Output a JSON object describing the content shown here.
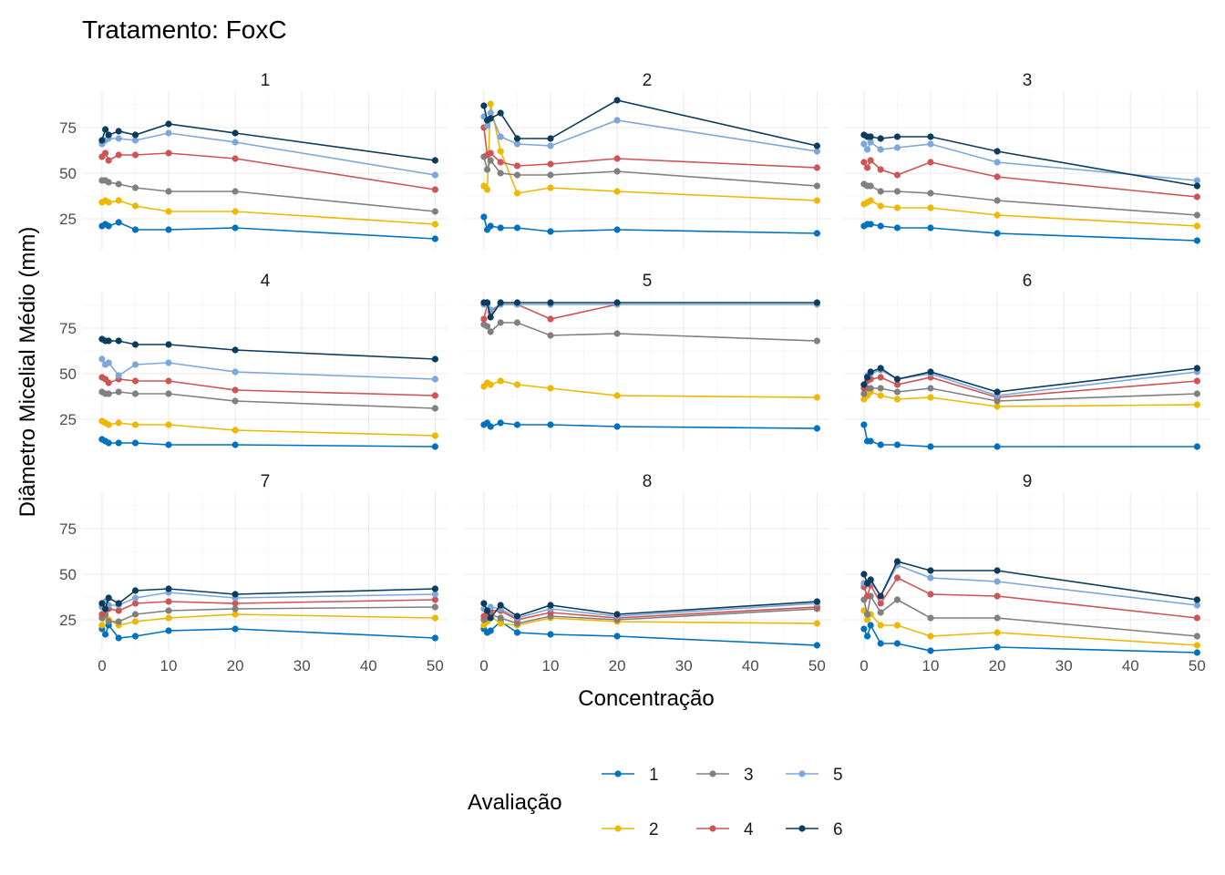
{
  "title": "Tratamento: FoxC",
  "xlabel": "Concentração",
  "ylabel": "Diâmetro Micelial Médio (mm)",
  "legend": {
    "title": "Avaliação",
    "entries": [
      {
        "name": "1",
        "color": "#0072BD"
      },
      {
        "name": "2",
        "color": "#EDB800"
      },
      {
        "name": "3",
        "color": "#808080"
      },
      {
        "name": "4",
        "color": "#CD5555"
      },
      {
        "name": "5",
        "color": "#7DA7D9"
      },
      {
        "name": "6",
        "color": "#0B3C5D"
      }
    ]
  },
  "chart_data": {
    "type": "line",
    "facet_wrap": "3x3",
    "x": [
      0,
      0.5,
      1,
      2.5,
      5,
      10,
      20,
      50
    ],
    "x_ticks": [
      0,
      10,
      20,
      30,
      40,
      50
    ],
    "y_ticks": [
      25,
      50,
      75
    ],
    "xlim": [
      -3,
      52
    ],
    "ylim": [
      8,
      95
    ],
    "legend_position": "bottom",
    "panels": [
      {
        "label": "1",
        "series": [
          {
            "name": "1",
            "values": [
              21,
              22,
              21,
              23,
              19,
              19,
              20,
              14
            ]
          },
          {
            "name": "2",
            "values": [
              34,
              35,
              34,
              35,
              32,
              29,
              29,
              22
            ]
          },
          {
            "name": "3",
            "values": [
              46,
              46,
              45,
              44,
              42,
              40,
              40,
              29
            ]
          },
          {
            "name": "4",
            "values": [
              59,
              61,
              57,
              60,
              60,
              61,
              58,
              41
            ]
          },
          {
            "name": "5",
            "values": [
              66,
              68,
              69,
              69,
              68,
              72,
              67,
              49
            ]
          },
          {
            "name": "6",
            "values": [
              68,
              74,
              71,
              73,
              71,
              77,
              72,
              57
            ]
          }
        ]
      },
      {
        "label": "2",
        "series": [
          {
            "name": "1",
            "values": [
              26,
              19,
              21,
              20,
              20,
              18,
              19,
              17
            ]
          },
          {
            "name": "2",
            "values": [
              43,
              41,
              88,
              62,
              39,
              42,
              40,
              35
            ]
          },
          {
            "name": "3",
            "values": [
              59,
              52,
              57,
              50,
              49,
              49,
              51,
              43
            ]
          },
          {
            "name": "4",
            "values": [
              75,
              60,
              61,
              56,
              54,
              55,
              58,
              53
            ]
          },
          {
            "name": "5",
            "values": [
              81,
              76,
              83,
              70,
              66,
              65,
              79,
              62
            ]
          },
          {
            "name": "6",
            "values": [
              87,
              79,
              80,
              83,
              69,
              69,
              90,
              65
            ]
          }
        ]
      },
      {
        "label": "3",
        "series": [
          {
            "name": "1",
            "values": [
              21,
              22,
              22,
              21,
              20,
              20,
              17,
              13
            ]
          },
          {
            "name": "2",
            "values": [
              33,
              34,
              35,
              32,
              31,
              31,
              27,
              21
            ]
          },
          {
            "name": "3",
            "values": [
              44,
              43,
              43,
              40,
              40,
              39,
              35,
              27
            ]
          },
          {
            "name": "4",
            "values": [
              56,
              53,
              57,
              52,
              49,
              56,
              48,
              37
            ]
          },
          {
            "name": "5",
            "values": [
              66,
              63,
              67,
              63,
              64,
              66,
              56,
              46
            ]
          },
          {
            "name": "6",
            "values": [
              71,
              70,
              70,
              69,
              70,
              70,
              62,
              43
            ]
          }
        ]
      },
      {
        "label": "4",
        "series": [
          {
            "name": "1",
            "values": [
              14,
              13,
              12,
              12,
              12,
              11,
              11,
              10
            ]
          },
          {
            "name": "2",
            "values": [
              24,
              23,
              22,
              23,
              22,
              22,
              19,
              16
            ]
          },
          {
            "name": "3",
            "values": [
              40,
              39,
              39,
              40,
              39,
              39,
              35,
              31
            ]
          },
          {
            "name": "4",
            "values": [
              48,
              47,
              45,
              47,
              46,
              46,
              41,
              38
            ]
          },
          {
            "name": "5",
            "values": [
              58,
              55,
              56,
              49,
              55,
              56,
              51,
              47
            ]
          },
          {
            "name": "6",
            "values": [
              69,
              68,
              68,
              68,
              66,
              66,
              63,
              58
            ]
          }
        ]
      },
      {
        "label": "5",
        "series": [
          {
            "name": "1",
            "values": [
              22,
              23,
              21,
              23,
              22,
              22,
              21,
              20
            ]
          },
          {
            "name": "2",
            "values": [
              43,
              45,
              44,
              46,
              44,
              42,
              38,
              37
            ]
          },
          {
            "name": "3",
            "values": [
              77,
              76,
              73,
              78,
              78,
              71,
              72,
              68
            ]
          },
          {
            "name": "4",
            "values": [
              80,
              88,
              84,
              88,
              88,
              80,
              88,
              null
            ]
          },
          {
            "name": "5",
            "values": [
              88,
              88,
              85,
              88,
              88,
              88,
              88,
              88
            ]
          },
          {
            "name": "6",
            "values": [
              89,
              89,
              81,
              89,
              89,
              89,
              89,
              89
            ]
          }
        ]
      },
      {
        "label": "6",
        "series": [
          {
            "name": "1",
            "values": [
              22,
              13,
              13,
              11,
              11,
              10,
              10,
              10
            ]
          },
          {
            "name": "2",
            "values": [
              36,
              38,
              40,
              38,
              36,
              37,
              32,
              33
            ]
          },
          {
            "name": "3",
            "values": [
              39,
              42,
              42,
              42,
              40,
              42,
              35,
              39
            ]
          },
          {
            "name": "4",
            "values": [
              42,
              46,
              47,
              48,
              44,
              48,
              37,
              46
            ]
          },
          {
            "name": "5",
            "values": [
              44,
              49,
              50,
              52,
              47,
              50,
              38,
              51
            ]
          },
          {
            "name": "6",
            "values": [
              44,
              48,
              51,
              53,
              47,
              51,
              40,
              53
            ]
          }
        ]
      },
      {
        "label": "7",
        "series": [
          {
            "name": "1",
            "values": [
              20,
              17,
              22,
              15,
              16,
              19,
              20,
              15
            ]
          },
          {
            "name": "2",
            "values": [
              22,
              27,
              25,
              22,
              24,
              26,
              28,
              26
            ]
          },
          {
            "name": "3",
            "values": [
              26,
              28,
              24,
              24,
              28,
              30,
              31,
              32
            ]
          },
          {
            "name": "4",
            "values": [
              28,
              31,
              31,
              30,
              34,
              35,
              34,
              36
            ]
          },
          {
            "name": "5",
            "values": [
              32,
              35,
              33,
              33,
              37,
              40,
              37,
              39
            ]
          },
          {
            "name": "6",
            "values": [
              34,
              31,
              37,
              34,
              41,
              42,
              39,
              42
            ]
          }
        ]
      },
      {
        "label": "8",
        "series": [
          {
            "name": "1",
            "values": [
              20,
              18,
              19,
              24,
              18,
              17,
              16,
              11
            ]
          },
          {
            "name": "2",
            "values": [
              22,
              24,
              27,
              23,
              22,
              26,
              24,
              23
            ]
          },
          {
            "name": "3",
            "values": [
              25,
              26,
              28,
              26,
              23,
              27,
              25,
              31
            ]
          },
          {
            "name": "4",
            "values": [
              27,
              29,
              30,
              30,
              25,
              29,
              26,
              32
            ]
          },
          {
            "name": "5",
            "values": [
              31,
              30,
              32,
              31,
              26,
              31,
              27,
              34
            ]
          },
          {
            "name": "6",
            "values": [
              34,
              30,
              26,
              33,
              27,
              33,
              28,
              35
            ]
          }
        ]
      },
      {
        "label": "9",
        "series": [
          {
            "name": "1",
            "values": [
              20,
              16,
              22,
              12,
              12,
              8,
              10,
              7
            ]
          },
          {
            "name": "2",
            "values": [
              30,
              25,
              28,
              22,
              22,
              16,
              18,
              11
            ]
          },
          {
            "name": "3",
            "values": [
              36,
              28,
              38,
              29,
              36,
              26,
              26,
              16
            ]
          },
          {
            "name": "4",
            "values": [
              43,
              38,
              44,
              34,
              48,
              39,
              38,
              26
            ]
          },
          {
            "name": "5",
            "values": [
              45,
              45,
              46,
              38,
              55,
              48,
              46,
              33
            ]
          },
          {
            "name": "6",
            "values": [
              50,
              45,
              47,
              38,
              57,
              52,
              52,
              36
            ]
          }
        ]
      }
    ]
  }
}
